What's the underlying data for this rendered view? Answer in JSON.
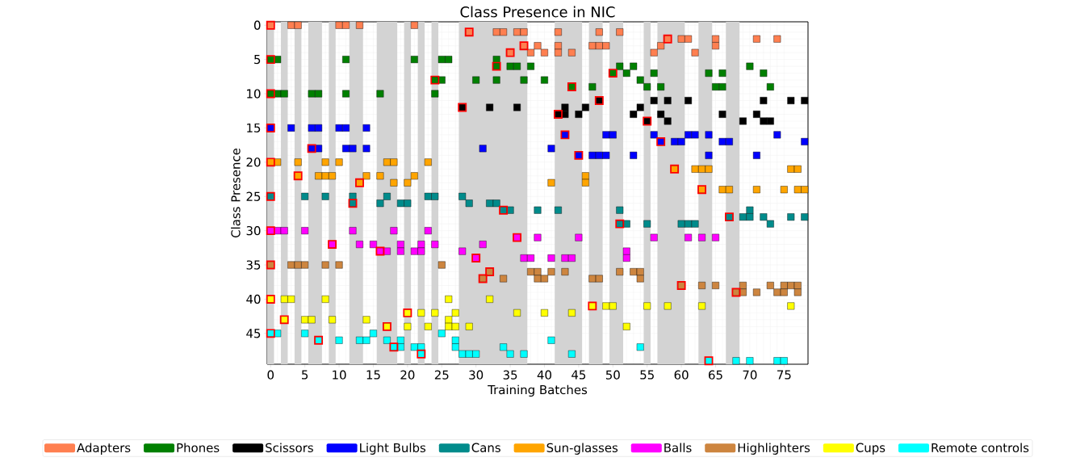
{
  "chart_data": {
    "type": "scatter",
    "title": "Class Presence in NIC",
    "xlabel": "Training Batches",
    "ylabel": "Class Presence",
    "marker": "square",
    "legend": "bottom",
    "grid": true,
    "xlim": [
      -0.5,
      78.5
    ],
    "ylim": [
      49.5,
      -0.5
    ],
    "xticks": [
      0,
      5,
      10,
      15,
      20,
      25,
      30,
      35,
      40,
      45,
      50,
      55,
      60,
      65,
      70,
      75
    ],
    "yticks": [
      0,
      5,
      10,
      15,
      20,
      25,
      30,
      35,
      40,
      45
    ],
    "bands": [
      {
        "axis": "x",
        "from": -0.5,
        "to": 0.5,
        "color": "#d3d3d3"
      },
      {
        "axis": "x",
        "from": 1.5,
        "to": 2.5,
        "color": "#d3d3d3"
      },
      {
        "axis": "x",
        "from": 3.5,
        "to": 4.5,
        "color": "#d3d3d3"
      },
      {
        "axis": "x",
        "from": 5.5,
        "to": 7.5,
        "color": "#d3d3d3"
      },
      {
        "axis": "x",
        "from": 8.5,
        "to": 9.5,
        "color": "#d3d3d3"
      },
      {
        "axis": "x",
        "from": 11.5,
        "to": 13.5,
        "color": "#d3d3d3"
      },
      {
        "axis": "x",
        "from": 15.5,
        "to": 18.5,
        "color": "#d3d3d3"
      },
      {
        "axis": "x",
        "from": 19.5,
        "to": 20.5,
        "color": "#d3d3d3"
      },
      {
        "axis": "x",
        "from": 21.5,
        "to": 22.5,
        "color": "#d3d3d3"
      },
      {
        "axis": "x",
        "from": 23.5,
        "to": 24.5,
        "color": "#d3d3d3"
      },
      {
        "axis": "x",
        "from": 27.5,
        "to": 37.5,
        "color": "#d3d3d3"
      },
      {
        "axis": "x",
        "from": 41.5,
        "to": 45.5,
        "color": "#d3d3d3"
      },
      {
        "axis": "x",
        "from": 46.5,
        "to": 48.5,
        "color": "#d3d3d3"
      },
      {
        "axis": "x",
        "from": 49.5,
        "to": 51.5,
        "color": "#d3d3d3"
      },
      {
        "axis": "x",
        "from": 54.5,
        "to": 55.5,
        "color": "#d3d3d3"
      },
      {
        "axis": "x",
        "from": 56.5,
        "to": 60.5,
        "color": "#d3d3d3"
      },
      {
        "axis": "x",
        "from": 62.5,
        "to": 64.5,
        "color": "#d3d3d3"
      },
      {
        "axis": "x",
        "from": 66.5,
        "to": 68.5,
        "color": "#d3d3d3"
      }
    ],
    "series": [
      {
        "name": "Adapters",
        "color": "#ff7f50",
        "x": [
          0,
          3,
          4,
          10,
          11,
          13,
          21,
          29,
          33,
          34,
          36,
          37,
          42,
          48,
          51,
          58,
          60,
          61,
          65,
          71,
          74,
          37,
          39,
          42,
          47,
          48,
          49,
          57,
          65,
          35,
          38,
          40,
          42,
          44,
          56,
          62
        ],
        "values": [
          0,
          0,
          0,
          0,
          0,
          0,
          0,
          1,
          1,
          1,
          1,
          1,
          1,
          1,
          1,
          2,
          2,
          2,
          2,
          2,
          2,
          3,
          3,
          3,
          3,
          3,
          3,
          3,
          3,
          4,
          4,
          4,
          4,
          4,
          4,
          4
        ]
      },
      {
        "name": "Phones",
        "color": "#008000",
        "x": [
          0,
          1,
          11,
          21,
          25,
          26,
          33,
          33,
          35,
          36,
          38,
          51,
          53,
          70,
          50,
          52,
          56,
          64,
          66,
          72,
          24,
          25,
          30,
          33,
          37,
          40,
          54,
          44,
          47,
          55,
          57,
          65,
          66,
          73,
          0,
          1,
          2,
          6,
          7,
          11,
          16,
          24
        ],
        "values": [
          5,
          5,
          5,
          5,
          5,
          5,
          5,
          6,
          6,
          6,
          6,
          6,
          6,
          6,
          7,
          7,
          7,
          7,
          7,
          7,
          8,
          8,
          8,
          8,
          8,
          8,
          8,
          9,
          9,
          9,
          9,
          9,
          9,
          9,
          10,
          10,
          10,
          10,
          10,
          10,
          10,
          10
        ]
      },
      {
        "name": "Scissors",
        "color": "#000000",
        "x": [
          48,
          56,
          58,
          61,
          72,
          76,
          78,
          28,
          32,
          36,
          43,
          46,
          54,
          42,
          43,
          45,
          53,
          57,
          66,
          71,
          55,
          58,
          69,
          72,
          73
        ],
        "values": [
          11,
          11,
          11,
          11,
          11,
          11,
          11,
          12,
          12,
          12,
          12,
          12,
          12,
          13,
          13,
          13,
          13,
          13,
          13,
          13,
          14,
          14,
          14,
          14,
          14
        ]
      },
      {
        "name": "Light Bulbs",
        "color": "#0000ff",
        "x": [
          0,
          3,
          6,
          7,
          10,
          11,
          14,
          43,
          49,
          50,
          56,
          61,
          62,
          64,
          74,
          57,
          59,
          60,
          66,
          67,
          78,
          6,
          7,
          11,
          12,
          14,
          31,
          41,
          45,
          47,
          48,
          49,
          53,
          64,
          71
        ],
        "values": [
          15,
          15,
          15,
          15,
          15,
          15,
          15,
          16,
          16,
          16,
          16,
          16,
          16,
          16,
          16,
          17,
          17,
          17,
          17,
          17,
          17,
          18,
          18,
          18,
          18,
          18,
          18,
          18,
          19,
          19,
          19,
          19,
          19,
          19,
          19
        ]
      },
      {
        "name": "Cans",
        "color": "#008b8b",
        "x": [
          0,
          5,
          8,
          12,
          17,
          23,
          24,
          28,
          12,
          16,
          19,
          20,
          29,
          32,
          33,
          34,
          35,
          39,
          42,
          51,
          70,
          67,
          69,
          70,
          72,
          76,
          78,
          51,
          52,
          55,
          60,
          61,
          62,
          73
        ],
        "values": [
          25,
          25,
          25,
          25,
          25,
          25,
          25,
          25,
          26,
          26,
          26,
          26,
          26,
          26,
          26,
          27,
          27,
          27,
          27,
          27,
          27,
          28,
          28,
          28,
          28,
          28,
          28,
          29,
          29,
          29,
          29,
          29,
          29,
          29
        ]
      },
      {
        "name": "Sun-glasses",
        "color": "#ffa500",
        "x": [
          0,
          1,
          4,
          8,
          10,
          17,
          18,
          23,
          59,
          62,
          63,
          64,
          76,
          77,
          4,
          7,
          8,
          9,
          14,
          16,
          21,
          46,
          13,
          18,
          20,
          41,
          46,
          63,
          66,
          67,
          71,
          75,
          77,
          78
        ],
        "values": [
          20,
          20,
          20,
          20,
          20,
          20,
          20,
          20,
          21,
          21,
          21,
          21,
          21,
          21,
          22,
          22,
          22,
          22,
          22,
          22,
          22,
          22,
          23,
          23,
          23,
          23,
          23,
          24,
          24,
          24,
          24,
          24,
          24,
          24
        ]
      },
      {
        "name": "Balls",
        "color": "#ff00ff",
        "x": [
          0,
          1,
          2,
          5,
          12,
          18,
          23,
          36,
          39,
          45,
          56,
          61,
          63,
          65,
          9,
          13,
          15,
          19,
          22,
          24,
          31,
          16,
          17,
          19,
          21,
          22,
          28,
          52,
          30,
          37,
          38,
          41,
          43,
          44,
          52
        ],
        "values": [
          30,
          30,
          30,
          30,
          30,
          30,
          30,
          31,
          31,
          31,
          31,
          31,
          31,
          31,
          32,
          32,
          32,
          32,
          32,
          32,
          32,
          33,
          33,
          33,
          33,
          33,
          33,
          33,
          34,
          34,
          34,
          34,
          34,
          34,
          34
        ]
      },
      {
        "name": "Highlighters",
        "color": "#cd853f",
        "x": [
          0,
          3,
          4,
          5,
          8,
          10,
          25,
          32,
          38,
          39,
          41,
          43,
          51,
          53,
          54,
          31,
          34,
          39,
          40,
          47,
          48,
          54,
          60,
          63,
          65,
          69,
          73,
          75,
          76,
          77,
          68,
          69,
          71,
          74,
          75,
          77
        ],
        "values": [
          35,
          35,
          35,
          35,
          35,
          35,
          35,
          36,
          36,
          36,
          36,
          36,
          36,
          36,
          36,
          37,
          37,
          37,
          37,
          37,
          37,
          37,
          38,
          38,
          38,
          38,
          38,
          38,
          38,
          38,
          39,
          39,
          39,
          39,
          39,
          39
        ]
      },
      {
        "name": "Cups",
        "color": "#ffff00",
        "x": [
          0,
          2,
          3,
          8,
          26,
          32,
          47,
          49,
          50,
          55,
          58,
          63,
          76,
          20,
          22,
          24,
          27,
          36,
          40,
          44,
          2,
          5,
          6,
          9,
          14,
          26,
          17,
          20,
          23,
          26,
          27,
          29,
          52
        ],
        "values": [
          40,
          40,
          40,
          40,
          40,
          40,
          41,
          41,
          41,
          41,
          41,
          41,
          41,
          42,
          42,
          42,
          42,
          42,
          42,
          42,
          43,
          43,
          43,
          43,
          43,
          43,
          44,
          44,
          44,
          44,
          44,
          44,
          44
        ]
      },
      {
        "name": "Remote controls",
        "color": "#00ffff",
        "x": [
          0,
          1,
          5,
          15,
          25,
          7,
          10,
          13,
          14,
          17,
          19,
          27,
          41,
          18,
          19,
          21,
          22,
          27,
          34,
          54,
          22,
          28,
          29,
          30,
          35,
          37,
          44,
          64,
          68,
          70,
          74,
          75
        ],
        "values": [
          45,
          45,
          45,
          45,
          45,
          46,
          46,
          46,
          46,
          46,
          46,
          46,
          46,
          47,
          47,
          47,
          47,
          47,
          47,
          47,
          48,
          48,
          48,
          48,
          48,
          48,
          48,
          49,
          49,
          49,
          49,
          49
        ]
      },
      {
        "color": "#ff0000",
        "marker": "square",
        "x": [
          0,
          29,
          58,
          37,
          35,
          0,
          33,
          50,
          24,
          44,
          0,
          48,
          28,
          42,
          55,
          0,
          43,
          57,
          6,
          45,
          0,
          59,
          4,
          13,
          63,
          0,
          12,
          34,
          67,
          51,
          0,
          36,
          9,
          16,
          30,
          0,
          32,
          31,
          60,
          68,
          0,
          47,
          20,
          2,
          17,
          0,
          7,
          18,
          22,
          64
        ],
        "values": [
          0,
          1,
          2,
          3,
          4,
          5,
          6,
          7,
          8,
          9,
          10,
          11,
          12,
          13,
          14,
          15,
          16,
          17,
          18,
          19,
          20,
          21,
          22,
          23,
          24,
          25,
          26,
          27,
          28,
          29,
          30,
          31,
          32,
          33,
          34,
          35,
          36,
          37,
          38,
          39,
          40,
          41,
          42,
          43,
          44,
          45,
          46,
          47,
          48,
          49
        ]
      }
    ]
  }
}
